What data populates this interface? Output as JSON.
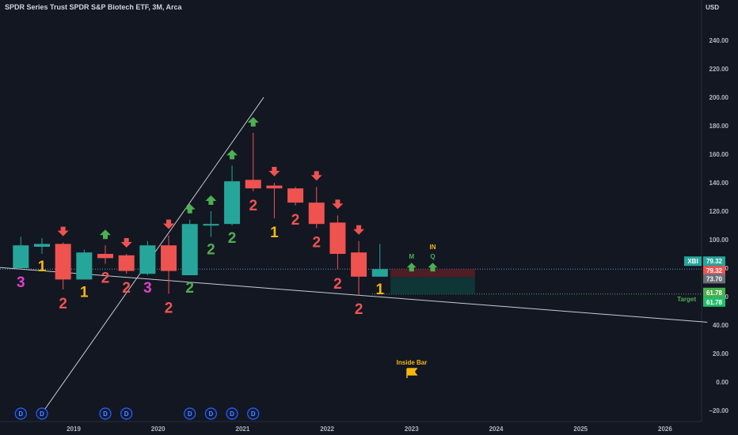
{
  "header": {
    "title": "SPDR Series Trust SPDR S&P Biotech ETF, 3M, Arca",
    "currency": "USD"
  },
  "colors": {
    "background": "#131722",
    "up": "#26a69a",
    "down": "#ef5350",
    "two_up": "#4caf50",
    "one": "#f5b80f",
    "three": "#e040c8",
    "trendline": "#c9ccd3",
    "dividend": "#2962ff"
  },
  "chart_data": {
    "type": "candlestick",
    "y_ticks": [
      -20,
      0,
      20,
      40,
      60,
      80,
      100,
      120,
      140,
      160,
      180,
      200,
      220,
      240
    ],
    "y_tick_labels": [
      "−20.00",
      "0.00",
      "20.00",
      "40.00",
      "60.00",
      "80.00",
      "100.00",
      "120.00",
      "140.00",
      "160.00",
      "180.00",
      "200.00",
      "220.00",
      "240.00"
    ],
    "x_ticks": [
      "2019",
      "2020",
      "2021",
      "2022",
      "2023",
      "2024",
      "2025",
      "2026"
    ],
    "candles": [
      {
        "t": 2018.375,
        "o": 80,
        "h": 102,
        "l": 79,
        "c": 96,
        "label": "3"
      },
      {
        "t": 2018.625,
        "o": 95,
        "h": 101,
        "l": 90,
        "c": 97,
        "label": "1"
      },
      {
        "t": 2018.875,
        "o": 97,
        "h": 98,
        "l": 65,
        "c": 72,
        "label": "2",
        "arrow": "down"
      },
      {
        "t": 2019.125,
        "o": 72,
        "h": 93,
        "l": 72,
        "c": 91,
        "label": "1"
      },
      {
        "t": 2019.375,
        "o": 90,
        "h": 96,
        "l": 83,
        "c": 87,
        "label": "2",
        "arrow": "up"
      },
      {
        "t": 2019.625,
        "o": 89,
        "h": 90,
        "l": 76,
        "c": 78,
        "label": "2",
        "arrow": "down"
      },
      {
        "t": 2019.875,
        "o": 76,
        "h": 99,
        "l": 75,
        "c": 96,
        "label": "3"
      },
      {
        "t": 2020.125,
        "o": 96,
        "h": 103,
        "l": 62,
        "c": 78,
        "label": "2",
        "arrow": "down"
      },
      {
        "t": 2020.375,
        "o": 75,
        "h": 114,
        "l": 75,
        "c": 111,
        "label": "2",
        "arrow": "up"
      },
      {
        "t": 2020.625,
        "o": 111,
        "h": 120,
        "l": 102,
        "c": 111,
        "label": "2",
        "arrow": "up"
      },
      {
        "t": 2020.875,
        "o": 111,
        "h": 152,
        "l": 110,
        "c": 141,
        "label": "2",
        "arrow": "up"
      },
      {
        "t": 2021.125,
        "o": 142,
        "h": 175,
        "l": 134,
        "c": 136,
        "label": "2",
        "arrow": "up"
      },
      {
        "t": 2021.375,
        "o": 138,
        "h": 140,
        "l": 115,
        "c": 136,
        "label": "1",
        "arrow": "down"
      },
      {
        "t": 2021.625,
        "o": 136,
        "h": 137,
        "l": 124,
        "c": 126,
        "label": "2"
      },
      {
        "t": 2021.875,
        "o": 126,
        "h": 137,
        "l": 108,
        "c": 111,
        "label": "2",
        "arrow": "down"
      },
      {
        "t": 2022.125,
        "o": 112,
        "h": 117,
        "l": 79,
        "c": 90,
        "label": "2",
        "arrow": "down"
      },
      {
        "t": 2022.375,
        "o": 91,
        "h": 99,
        "l": 61,
        "c": 74,
        "label": "2",
        "arrow": "down"
      },
      {
        "t": 2022.625,
        "o": 74,
        "h": 97,
        "l": 74,
        "c": 79.32,
        "label": "1"
      }
    ],
    "trendlines": [
      {
        "name": "steep-trendline",
        "points": [
          [
            2018.625,
            -22
          ],
          [
            2021.25,
            200
          ]
        ]
      },
      {
        "name": "descending-trendline",
        "points": [
          [
            2018.0,
            81
          ],
          [
            2026.5,
            42
          ]
        ]
      }
    ],
    "levels": {
      "current": {
        "text": "79.32",
        "value": 79.32
      },
      "upper": {
        "text": "79.32",
        "value": 79.32
      },
      "mid": {
        "text": "73.70",
        "value": 73.7
      },
      "target": {
        "text": "61.78",
        "value": 61.78
      },
      "target2": {
        "text": "61.78",
        "value": 61.78
      }
    },
    "price_tag_symbol": "XBI",
    "target_label": "Target",
    "signal_labels": {
      "m": "M",
      "q": "Q",
      "in": "IN"
    },
    "inside_bar_label": "Inside Bar",
    "dividend_marker": "D",
    "dividend_times": [
      2018.375,
      2018.625,
      2019.375,
      2019.625,
      2020.375,
      2020.625,
      2020.875,
      2021.125
    ]
  }
}
